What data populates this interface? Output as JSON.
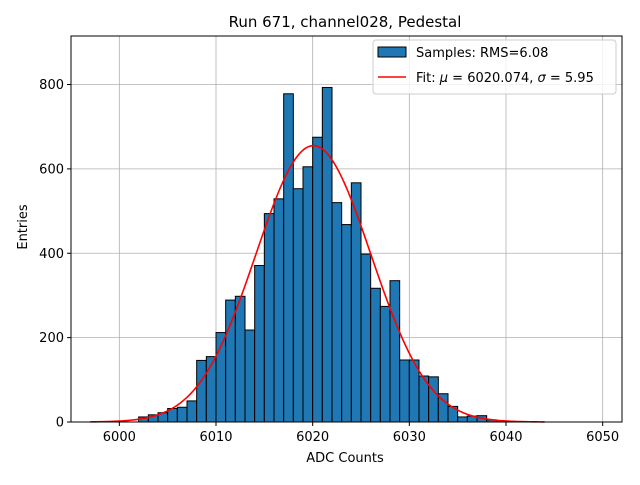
{
  "chart_data": {
    "type": "histogram",
    "title": "Run 671, channel028, Pedestal",
    "xlabel": "ADC Counts",
    "ylabel": "Entries",
    "xlim": [
      5995,
      6052
    ],
    "ylim": [
      0,
      915
    ],
    "xticks": [
      6000,
      6010,
      6020,
      6030,
      6040,
      6050
    ],
    "yticks": [
      0,
      200,
      400,
      600,
      800
    ],
    "grid": true,
    "legend_position": "upper right",
    "bin_width": 1,
    "bins": [
      {
        "x": 6002,
        "count": 12
      },
      {
        "x": 6003,
        "count": 17
      },
      {
        "x": 6004,
        "count": 22
      },
      {
        "x": 6005,
        "count": 32
      },
      {
        "x": 6006,
        "count": 35
      },
      {
        "x": 6007,
        "count": 50
      },
      {
        "x": 6008,
        "count": 146
      },
      {
        "x": 6009,
        "count": 155
      },
      {
        "x": 6010,
        "count": 212
      },
      {
        "x": 6011,
        "count": 289
      },
      {
        "x": 6012,
        "count": 298
      },
      {
        "x": 6013,
        "count": 218
      },
      {
        "x": 6014,
        "count": 371
      },
      {
        "x": 6015,
        "count": 494
      },
      {
        "x": 6016,
        "count": 529
      },
      {
        "x": 6017,
        "count": 778
      },
      {
        "x": 6018,
        "count": 553
      },
      {
        "x": 6019,
        "count": 605
      },
      {
        "x": 6020,
        "count": 675
      },
      {
        "x": 6021,
        "count": 793
      },
      {
        "x": 6022,
        "count": 520
      },
      {
        "x": 6023,
        "count": 468
      },
      {
        "x": 6024,
        "count": 567
      },
      {
        "x": 6025,
        "count": 398
      },
      {
        "x": 6026,
        "count": 317
      },
      {
        "x": 6027,
        "count": 274
      },
      {
        "x": 6028,
        "count": 335
      },
      {
        "x": 6029,
        "count": 147
      },
      {
        "x": 6030,
        "count": 147
      },
      {
        "x": 6031,
        "count": 109
      },
      {
        "x": 6032,
        "count": 107
      },
      {
        "x": 6033,
        "count": 67
      },
      {
        "x": 6034,
        "count": 37
      },
      {
        "x": 6035,
        "count": 12
      },
      {
        "x": 6036,
        "count": 14
      },
      {
        "x": 6037,
        "count": 15
      },
      {
        "x": 6038,
        "count": 5
      },
      {
        "x": 6039,
        "count": 2
      }
    ],
    "fit": {
      "mu": 6020.074,
      "sigma": 5.95,
      "amplitude": 655,
      "x_range": [
        5997,
        6044
      ]
    },
    "legend": [
      {
        "label": "Samples: RMS=6.08",
        "kind": "patch"
      },
      {
        "label_prefix": "Fit: ",
        "mu_symbol": "μ",
        "mu_text": " = 6020.074, ",
        "sigma_symbol": "σ",
        "sigma_text": " = 5.95",
        "kind": "line"
      }
    ],
    "colors": {
      "bar_fill": "#1f77b4",
      "bar_edge": "#000000",
      "fit_line": "#ff0000",
      "grid": "#b0b0b0"
    }
  }
}
